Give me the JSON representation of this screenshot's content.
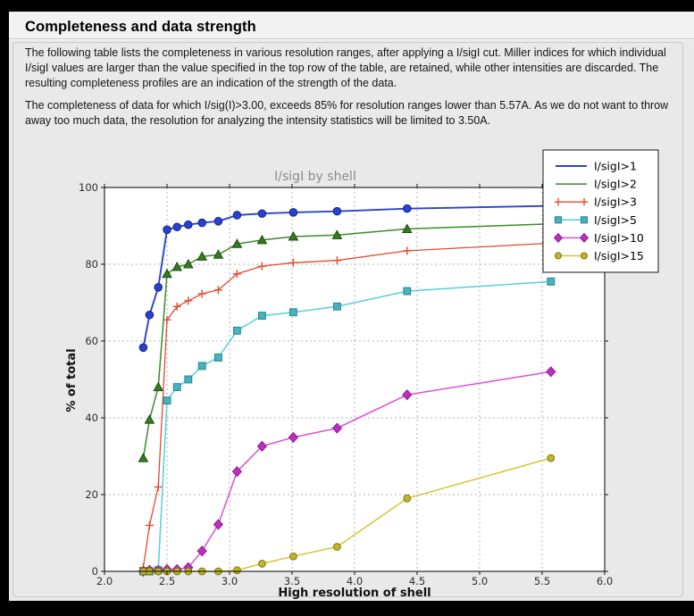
{
  "header": {
    "title": "Completeness and data strength"
  },
  "paragraphs": [
    "The following table lists the completeness in various resolution ranges, after applying a I/sigI cut. Miller indices for which individual I/sigI values are larger than the value specified in the top row of the table, are retained, while other intensities are discarded. The resulting completeness profiles are an indication of the strength of the data.",
    "The completeness of data for which I/sig(I)>3.00, exceeds  85% for resolution ranges lower than 5.57A. As we do not want to throw away too much data, the resolution for analyzing the intensity statistics will be limited to 3.50A."
  ],
  "colors": {
    "frame": "#000000",
    "content_bg": "#e9e9e9",
    "header_bg": "#f2f2f2",
    "plot_bg": "#ffffff",
    "grid": "#b3b3b3",
    "tick_label": "#2e2e2e",
    "chart_title": "#8c8c8c",
    "axis_label": "#111111"
  },
  "chart_data": {
    "type": "line",
    "title": "I/sigI by shell",
    "xlabel": "High resolution of shell",
    "ylabel": "% of total",
    "xlim": [
      2.0,
      6.0
    ],
    "ylim": [
      0,
      100
    ],
    "xticks": [
      2.0,
      2.5,
      3.0,
      3.5,
      4.0,
      4.5,
      5.0,
      5.5,
      6.0
    ],
    "xtick_labels": [
      "2.0",
      "2.5",
      "3.0",
      "3.5",
      "4.0",
      "4.5",
      "5.0",
      "5.5",
      "6.0"
    ],
    "yticks": [
      0,
      20,
      40,
      60,
      80,
      100
    ],
    "ytick_labels": [
      "0",
      "20",
      "40",
      "60",
      "80",
      "100"
    ],
    "grid": true,
    "legend_position": "top-right",
    "x": [
      2.31,
      2.36,
      2.43,
      2.5,
      2.58,
      2.67,
      2.78,
      2.91,
      3.06,
      3.26,
      3.51,
      3.86,
      4.42,
      5.57
    ],
    "series": [
      {
        "name": "I/sigI>1",
        "marker": "circle",
        "color": "#2a43cf",
        "marker_fill": "#2742d2",
        "marker_edge": "#16247e",
        "legend_markers": false,
        "values": [
          58.3,
          66.8,
          74.0,
          89.0,
          89.7,
          90.3,
          90.8,
          91.2,
          92.8,
          93.2,
          93.5,
          93.8,
          94.5,
          95.2
        ]
      },
      {
        "name": "I/sigI>2",
        "marker": "triangle",
        "color": "#3c8a29",
        "marker_fill": "#337d1e",
        "marker_edge": "#1b4a10",
        "legend_markers": false,
        "values": [
          29.5,
          39.5,
          48.0,
          77.5,
          79.3,
          80.0,
          82.0,
          82.5,
          85.3,
          86.3,
          87.2,
          87.6,
          89.2,
          90.5
        ]
      },
      {
        "name": "I/sigI>3",
        "marker": "plus",
        "color": "#e5492f",
        "marker_fill": "none",
        "marker_edge": "#e5492f",
        "legend_markers": true,
        "values": [
          1.0,
          12.0,
          22.0,
          65.5,
          69.0,
          70.5,
          72.3,
          73.3,
          77.5,
          79.5,
          80.4,
          81.0,
          83.5,
          85.5
        ]
      },
      {
        "name": "I/sigI>5",
        "marker": "square",
        "color": "#55d0d8",
        "marker_fill": "#49b2bc",
        "marker_edge": "#2a8a94",
        "legend_markers": true,
        "values": [
          0.0,
          0.0,
          0.3,
          44.5,
          48.0,
          50.0,
          53.5,
          55.7,
          62.7,
          66.6,
          67.5,
          69.0,
          73.0,
          75.5
        ]
      },
      {
        "name": "I/sigI>10",
        "marker": "diamond",
        "color": "#da4fda",
        "marker_fill": "#bf2dbf",
        "marker_edge": "#8c1f94",
        "legend_markers": true,
        "values": [
          0.0,
          0.3,
          0.3,
          0.5,
          0.5,
          1.0,
          5.3,
          12.2,
          26.0,
          32.6,
          34.9,
          37.3,
          46.0,
          52.0
        ]
      },
      {
        "name": "I/sigI>15",
        "marker": "dot",
        "color": "#d3c72e",
        "marker_fill": "#c0b52a",
        "marker_edge": "#7c7714",
        "legend_markers": true,
        "values": [
          0.0,
          0.0,
          0.0,
          0.0,
          0.0,
          0.0,
          0.0,
          0.0,
          0.3,
          2.0,
          3.9,
          6.4,
          19.0,
          29.5
        ]
      }
    ]
  }
}
